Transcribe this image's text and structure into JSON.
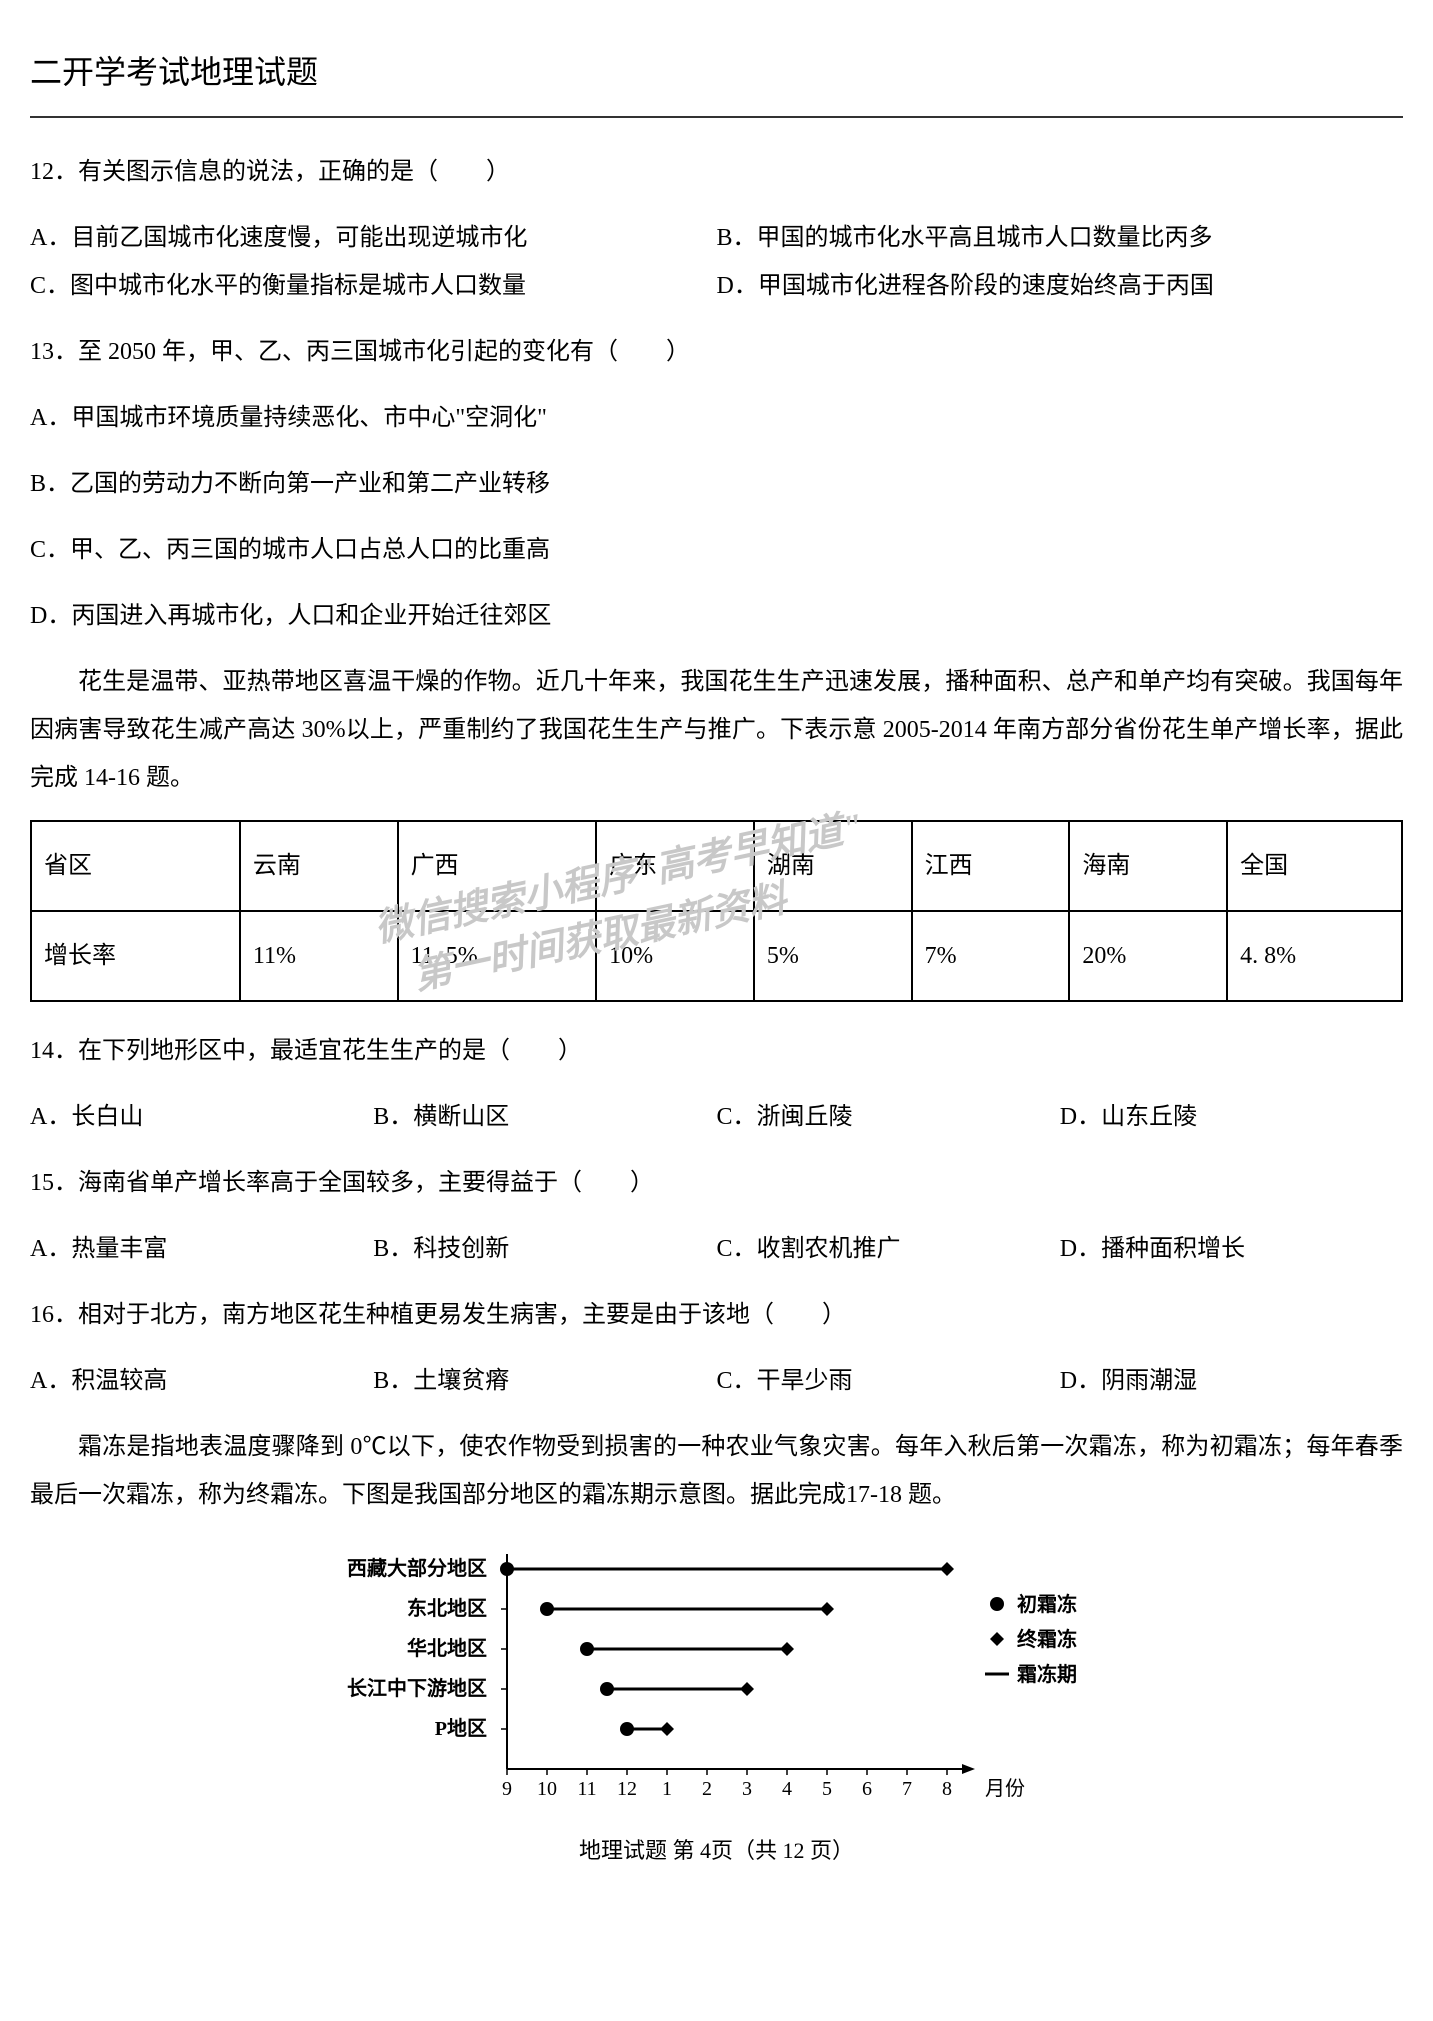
{
  "title": "二开学考试地理试题",
  "q12": {
    "stem": "12．有关图示信息的说法，正确的是（　　）",
    "A": "A．目前乙国城市化速度慢，可能出现逆城市化",
    "B": "B．甲国的城市化水平高且城市人口数量比丙多",
    "C": "C．图中城市化水平的衡量指标是城市人口数量",
    "D": "D．甲国城市化进程各阶段的速度始终高于丙国"
  },
  "q13": {
    "stem": "13．至 2050 年，甲、乙、丙三国城市化引起的变化有（　　）",
    "A": "A．甲国城市环境质量持续恶化、市中心\"空洞化\"",
    "B": "B．乙国的劳动力不断向第一产业和第二产业转移",
    "C": "C．甲、乙、丙三国的城市人口占总人口的比重高",
    "D": "D．丙国进入再城市化，人口和企业开始迁往郊区"
  },
  "passage1": "花生是温带、亚热带地区喜温干燥的作物。近几十年来，我国花生生产迅速发展，播种面积、总产和单产均有突破。我国每年因病害导致花生减产高达 30%以上，严重制约了我国花生生产与推广。下表示意 2005-2014 年南方部分省份花生单产增长率，据此完成 14-16 题。",
  "table": {
    "headers": [
      "省区",
      "云南",
      "广西",
      "广东",
      "湖南",
      "江西",
      "海南",
      "全国"
    ],
    "row_label": "增长率",
    "values": [
      "11%",
      "11. 5%",
      "10%",
      "5%",
      "7%",
      "20%",
      "4. 8%"
    ]
  },
  "watermark": {
    "line1": "微信搜索小程序\"高考早知道\"",
    "line2": "第一时间获取最新资料"
  },
  "q14": {
    "stem": "14．在下列地形区中，最适宜花生生产的是（　　）",
    "A": "A．长白山",
    "B": "B．横断山区",
    "C": "C．浙闽丘陵",
    "D": "D．山东丘陵"
  },
  "q15": {
    "stem": "15．海南省单产增长率高于全国较多，主要得益于（　　）",
    "A": "A．热量丰富",
    "B": "B．科技创新",
    "C": "C．收割农机推广",
    "D": "D．播种面积增长"
  },
  "q16": {
    "stem": "16．相对于北方，南方地区花生种植更易发生病害，主要是由于该地（　　）",
    "A": "A．积温较高",
    "B": "B．土壤贫瘠",
    "C": "C．干旱少雨",
    "D": "D．阴雨潮湿"
  },
  "passage2": "霜冻是指地表温度骤降到 0℃以下，使农作物受到损害的一种农业气象灾害。每年入秋后第一次霜冻，称为初霜冻；每年春季最后一次霜冻，称为终霜冻。下图是我国部分地区的霜冻期示意图。据此完成17-18 题。",
  "chart": {
    "regions": [
      "西藏大部分地区",
      "东北地区",
      "华北地区",
      "长江中下游地区",
      "P地区"
    ],
    "legend": {
      "init": "初霜冻",
      "final": "终霜冻",
      "period": "霜冻期"
    },
    "xaxis_label": "月份",
    "xticks": [
      "9",
      "10",
      "11",
      "12",
      "1",
      "2",
      "3",
      "4",
      "5",
      "6",
      "7",
      "8"
    ],
    "data": [
      {
        "start_month": 9,
        "end_month": 8
      },
      {
        "start_month": 10,
        "end_month": 5
      },
      {
        "start_month": 11,
        "end_month": 4
      },
      {
        "start_month": 11.5,
        "end_month": 3
      },
      {
        "start_month": 12,
        "end_month": 1
      }
    ],
    "colors": {
      "line": "#000000",
      "marker": "#000000",
      "text": "#000000",
      "bg": "#ffffff"
    },
    "font_size": 20,
    "marker_size": 7
  },
  "footer": "地理试题 第 4页（共 12 页）"
}
